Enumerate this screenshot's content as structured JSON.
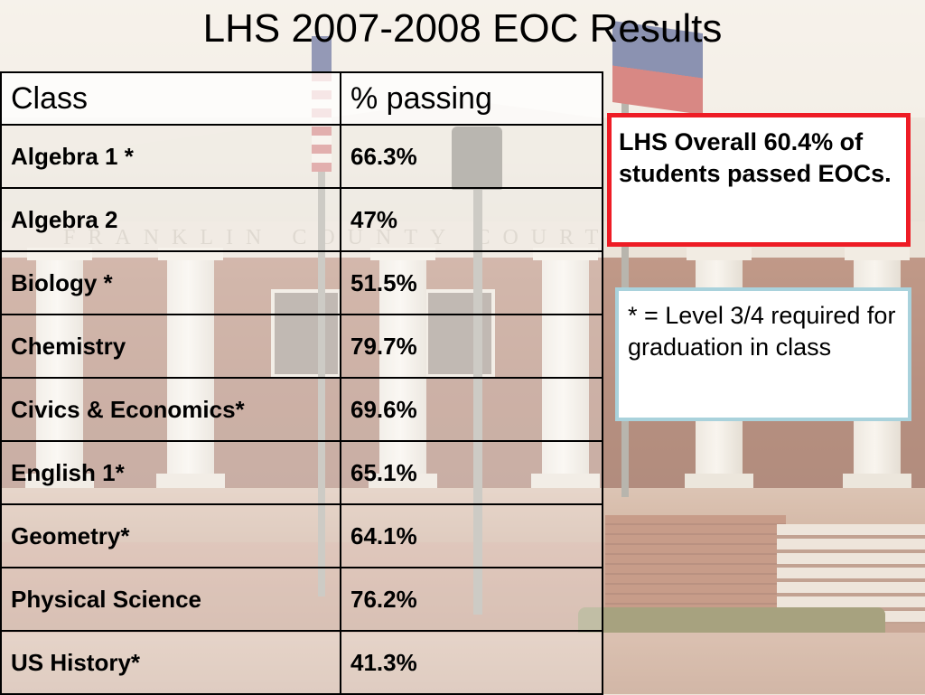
{
  "slide": {
    "title": "LHS 2007-2008 EOC Results"
  },
  "table": {
    "headers": [
      "Class",
      "% passing"
    ],
    "rows": [
      {
        "class": "Algebra 1 *",
        "passing": "66.3%"
      },
      {
        "class": "Algebra 2",
        "passing": "47%"
      },
      {
        "class": "Biology *",
        "passing": "51.5%"
      },
      {
        "class": "Chemistry",
        "passing": "79.7%"
      },
      {
        "class": "Civics & Economics*",
        "passing": "69.6%"
      },
      {
        "class": "English 1*",
        "passing": "65.1%"
      },
      {
        "class": "Geometry*",
        "passing": "64.1%"
      },
      {
        "class": "Physical Science",
        "passing": "76.2%"
      },
      {
        "class": "US History*",
        "passing": "41.3%"
      }
    ]
  },
  "callouts": {
    "overall": {
      "text": "LHS Overall 60.4% of students passed EOCs.",
      "border_color": "#ee1c25"
    },
    "note": {
      "text": "* = Level 3/4 required for graduation in class",
      "border_color": "#a9d2dc"
    }
  },
  "background": {
    "frieze_text": "FRANKLIN COUNTY COURT HOUSE"
  }
}
